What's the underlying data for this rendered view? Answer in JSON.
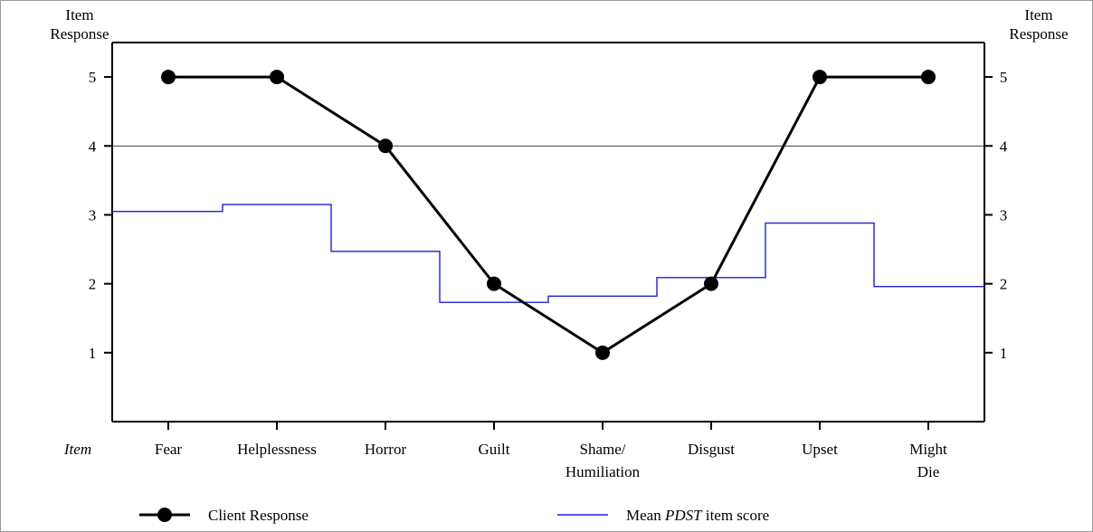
{
  "chart_data": {
    "type": "line",
    "y_axis_label_left": [
      "Item",
      "Response"
    ],
    "y_axis_label_right": [
      "Item",
      "Response"
    ],
    "x_axis_prefix": "Item",
    "ylim": [
      0,
      5.5
    ],
    "yticks": [
      1,
      2,
      3,
      4,
      5
    ],
    "reference_line": 4,
    "categories": [
      [
        "Fear"
      ],
      [
        "Helplessness"
      ],
      [
        "Horror"
      ],
      [
        "Guilt"
      ],
      [
        "Shame/",
        "Humiliation"
      ],
      [
        "Disgust"
      ],
      [
        "Upset"
      ],
      [
        "Might",
        "Die"
      ]
    ],
    "series": [
      {
        "name": "Client Response",
        "style": "line-markers",
        "color": "#000000",
        "values": [
          5,
          5,
          4,
          2,
          1,
          2,
          5,
          5
        ]
      },
      {
        "name_parts": [
          "Mean ",
          "PDST",
          " item score"
        ],
        "style": "step",
        "color": "#1f1fd6",
        "values": [
          3.05,
          3.15,
          2.47,
          1.73,
          1.82,
          2.09,
          2.88,
          1.96
        ]
      }
    ],
    "legend": [
      {
        "label": "Client Response"
      },
      {
        "label_parts": [
          "Mean ",
          "PDST",
          " item score"
        ]
      }
    ]
  }
}
